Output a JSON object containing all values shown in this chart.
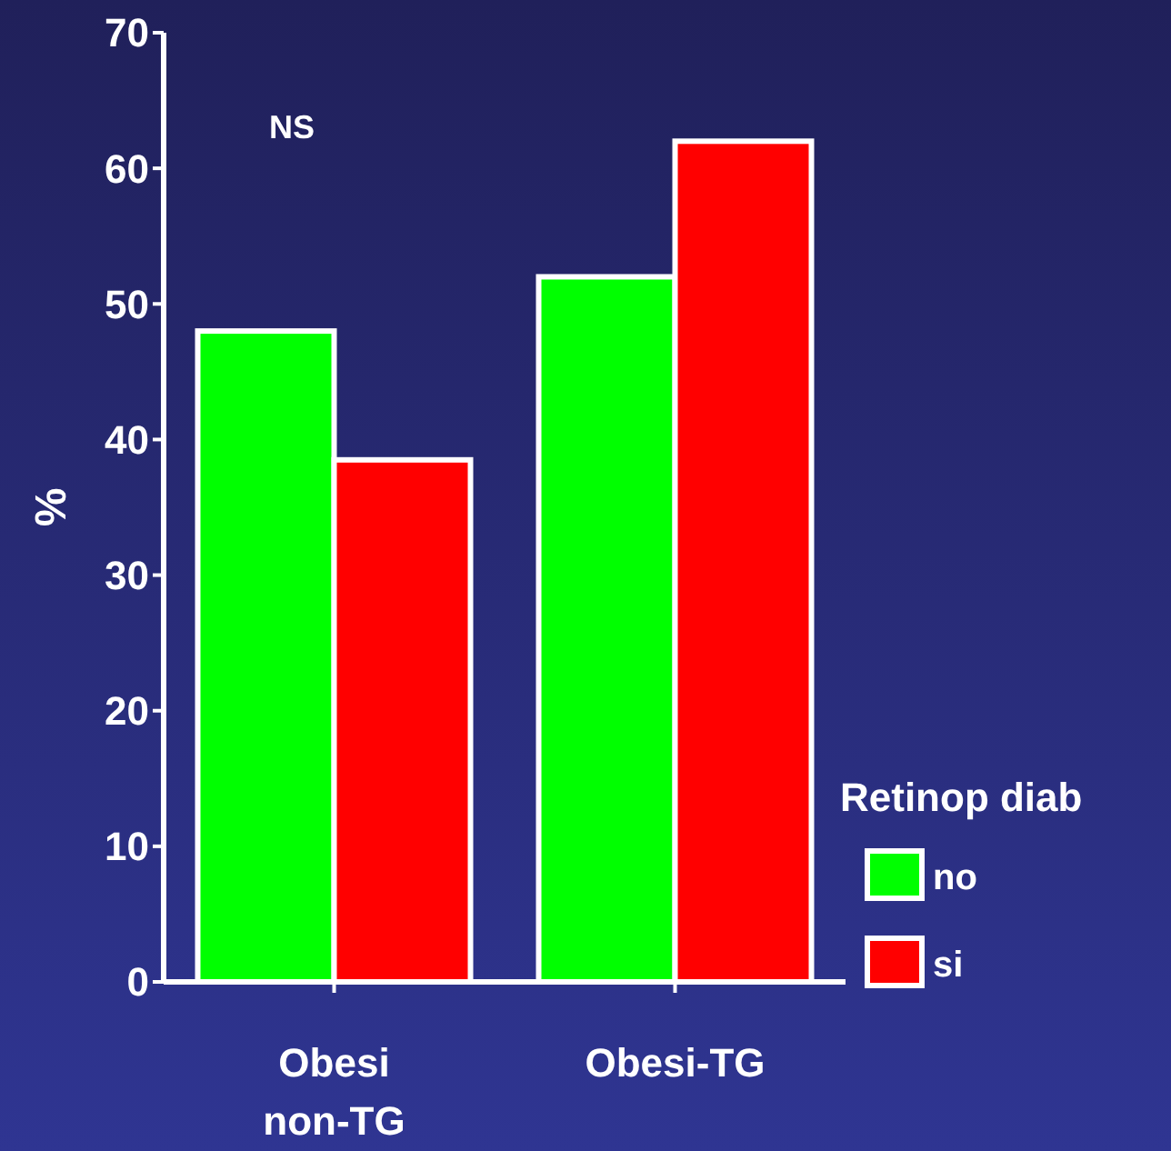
{
  "chart_data": {
    "type": "bar",
    "categories": [
      "Obesi non-TG",
      "Obesi-TG"
    ],
    "series": [
      {
        "name": "no",
        "color": "#00ff00",
        "values": [
          48,
          52
        ]
      },
      {
        "name": "si",
        "color": "#ff0000",
        "values": [
          38.5,
          62
        ]
      }
    ],
    "ylim": [
      0,
      70
    ],
    "yticks": [
      0,
      10,
      20,
      30,
      40,
      50,
      60,
      70
    ],
    "ylabel": "%",
    "legend_title": "Retinop diab",
    "legend": "bottom right",
    "grid": false,
    "annotations": [
      "NS"
    ]
  }
}
